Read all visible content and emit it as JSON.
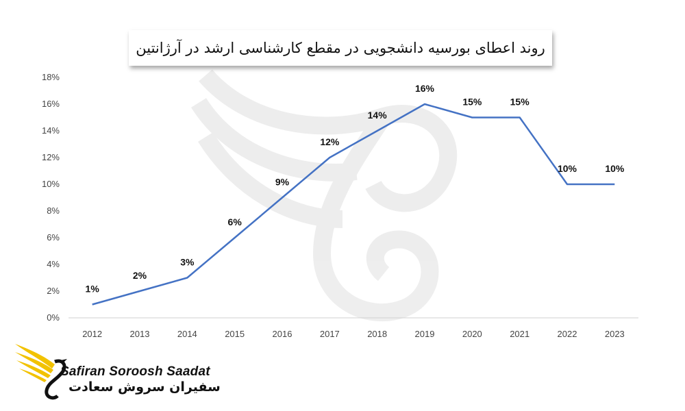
{
  "colors": {
    "line": "#4472c4",
    "axis": "#d0d0d0",
    "logo_wing": "#f2c200",
    "watermark": "#eeeeee"
  },
  "logo": {
    "icon": "eagle-wing-logo-icon",
    "name_en": "Safiran Soroosh Saadat",
    "name_fa": "سفیران سروش سعادت"
  },
  "chart_data": {
    "type": "line",
    "title": "روند اعطای بورسیه دانشجویی در مقطع کارشناسی ارشد در آرژانتین",
    "xlabel": "",
    "ylabel": "",
    "categories": [
      "2012",
      "2013",
      "2014",
      "2015",
      "2016",
      "2017",
      "2018",
      "2019",
      "2020",
      "2021",
      "2022",
      "2023"
    ],
    "series": [
      {
        "values": [
          1,
          null,
          3,
          null,
          null,
          12,
          null,
          16,
          15,
          15,
          10,
          10
        ]
      }
    ],
    "line_values": [
      1,
      2,
      3,
      6,
      9,
      12,
      14,
      16,
      15,
      15,
      10,
      10
    ],
    "data_labels": [
      "1%",
      "2%",
      "3%",
      "6%",
      "9%",
      "12%",
      "14%",
      "16%",
      "15%",
      "15%",
      "10%",
      "10%"
    ],
    "y_ticks": [
      "0%",
      "2%",
      "4%",
      "6%",
      "8%",
      "10%",
      "12%",
      "14%",
      "16%",
      "18%"
    ],
    "ylim": [
      0,
      18
    ],
    "grid": false,
    "legend": "none"
  }
}
